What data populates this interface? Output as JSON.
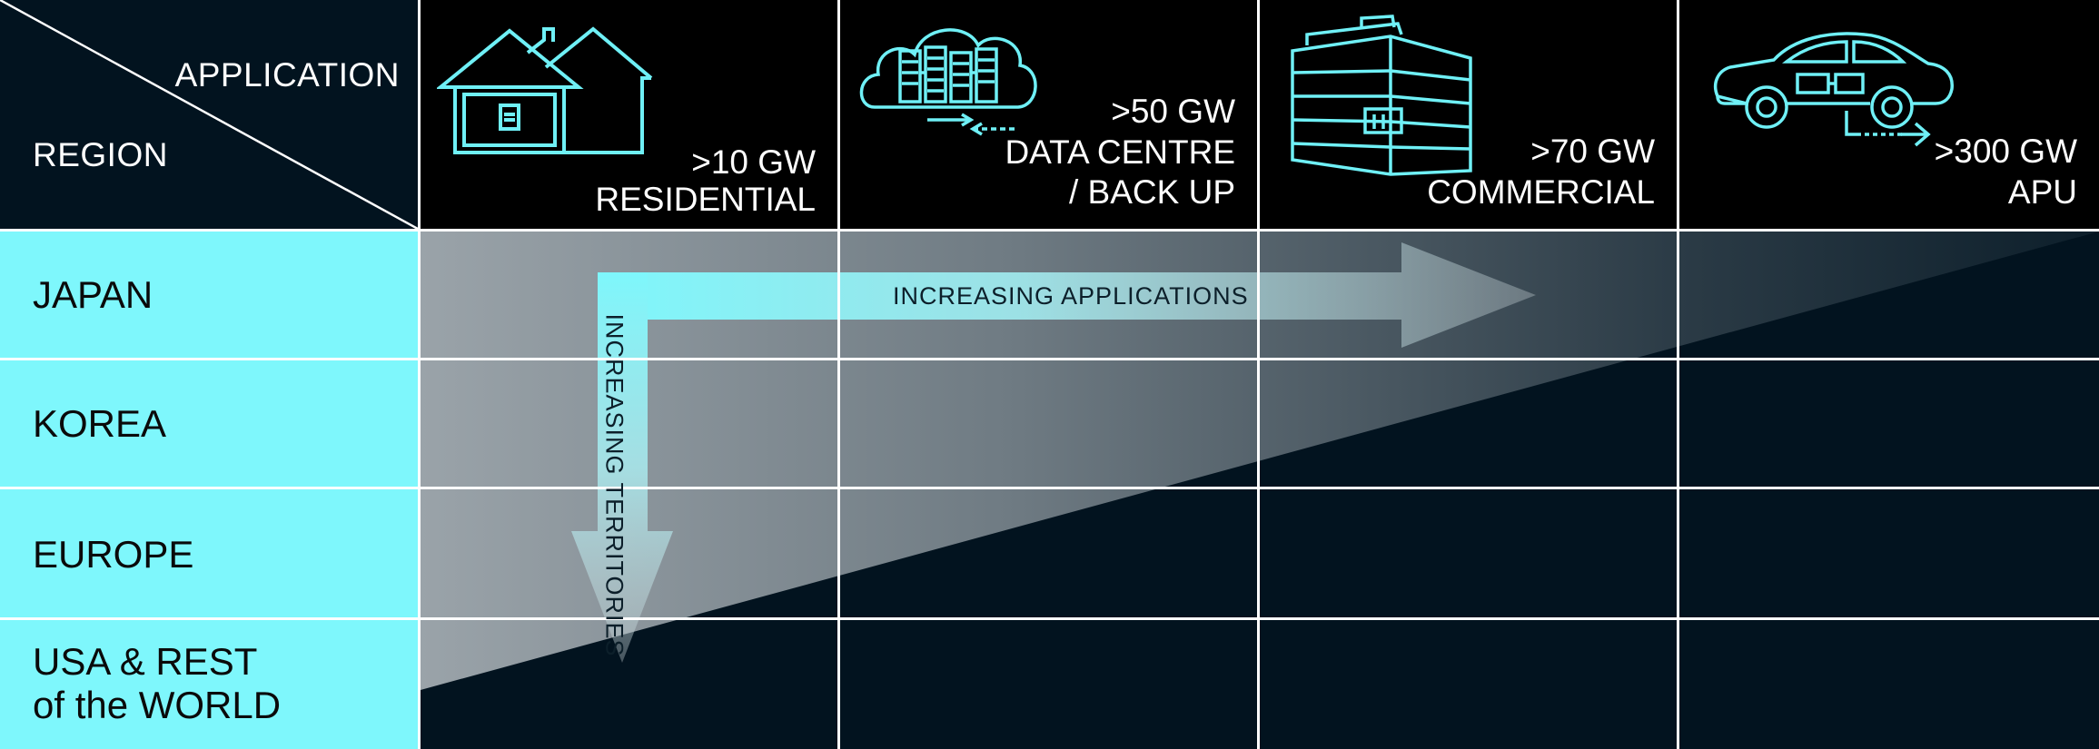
{
  "corner": {
    "column_header": "APPLICATION",
    "row_header": "REGION"
  },
  "applications": [
    {
      "gw": ">10 GW",
      "name_lines": [
        "RESIDENTIAL"
      ],
      "icon": "house-icon"
    },
    {
      "gw": ">50 GW",
      "name_lines": [
        "DATA CENTRE",
        "/ BACK UP"
      ],
      "icon": "cloud-server-icon"
    },
    {
      "gw": ">70 GW",
      "name_lines": [
        "COMMERCIAL"
      ],
      "icon": "building-icon"
    },
    {
      "gw": ">300 GW",
      "name_lines": [
        "APU"
      ],
      "icon": "car-icon"
    }
  ],
  "regions": [
    {
      "lines": [
        "JAPAN"
      ]
    },
    {
      "lines": [
        "KOREA"
      ]
    },
    {
      "lines": [
        "EUROPE"
      ]
    },
    {
      "lines": [
        "USA & REST",
        "of the WORLD"
      ]
    }
  ],
  "arrows": {
    "horizontal_label": "INCREASING  APPLICATIONS",
    "vertical_label": "INCREASING TERRITORIES"
  },
  "colors": {
    "cyan": "#7ef7fc",
    "dark": "#02131f",
    "icon_stroke": "#6ff0f6",
    "gradient_light": "#9aa3a9"
  }
}
